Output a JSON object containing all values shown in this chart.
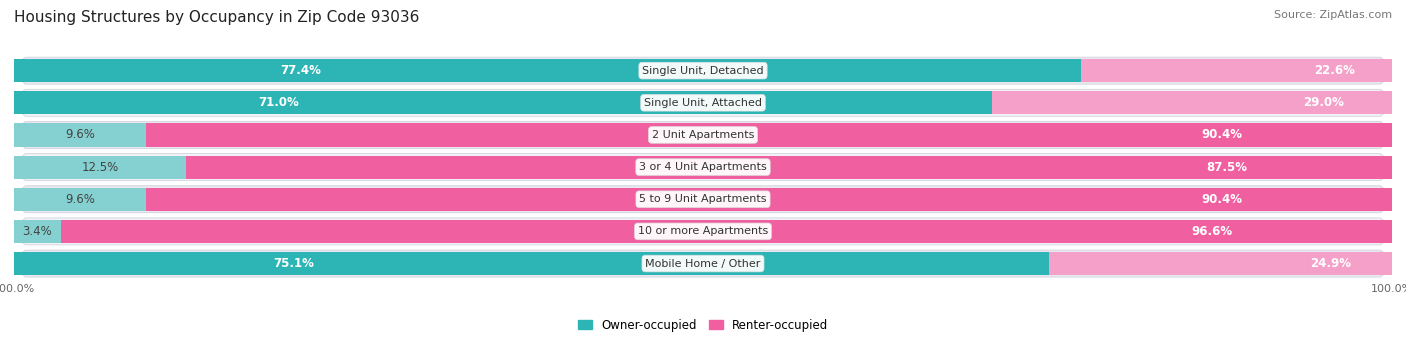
{
  "title": "Housing Structures by Occupancy in Zip Code 93036",
  "source": "Source: ZipAtlas.com",
  "categories": [
    "Single Unit, Detached",
    "Single Unit, Attached",
    "2 Unit Apartments",
    "3 or 4 Unit Apartments",
    "5 to 9 Unit Apartments",
    "10 or more Apartments",
    "Mobile Home / Other"
  ],
  "owner_pct": [
    77.4,
    71.0,
    9.6,
    12.5,
    9.6,
    3.4,
    75.1
  ],
  "renter_pct": [
    22.6,
    29.0,
    90.4,
    87.5,
    90.4,
    96.6,
    24.9
  ],
  "owner_color_strong": "#2db5b5",
  "owner_color_light": "#85d0d0",
  "renter_color_strong": "#f060a0",
  "renter_color_light": "#f5a0c8",
  "row_bg_dark": "#e8e8ee",
  "row_bg_light": "#f2f2f6",
  "bar_height": 0.72,
  "title_fontsize": 11,
  "label_fontsize": 8.5,
  "tick_fontsize": 8,
  "source_fontsize": 8,
  "legend_fontsize": 8.5,
  "cat_label_fontsize": 8
}
